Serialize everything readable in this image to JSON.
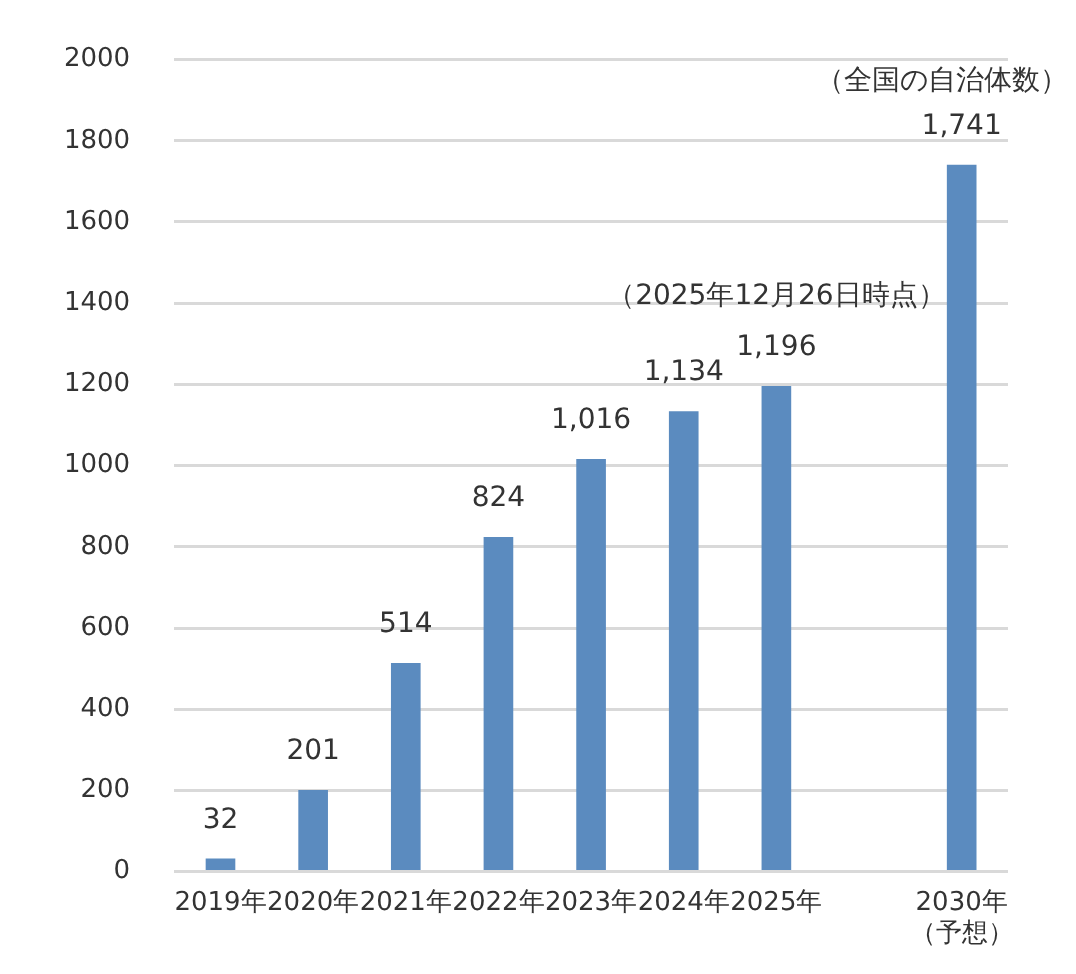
{
  "chart_data": {
    "type": "bar",
    "categories": [
      "2019年",
      "2020年",
      "2021年",
      "2022年",
      "2023年",
      "2024年",
      "2025年",
      null,
      "2030年（予想）"
    ],
    "values": [
      32,
      201,
      514,
      824,
      1016,
      1134,
      1196,
      null,
      1741
    ],
    "value_labels": [
      "32",
      "201",
      "514",
      "824",
      "1,016",
      "1,134",
      "1,196",
      null,
      "1,741"
    ],
    "color": "#5b8bbf",
    "ylim": [
      0,
      2000
    ],
    "yticks": [
      0,
      200,
      400,
      600,
      800,
      1000,
      1200,
      1400,
      1600,
      1800,
      2000
    ],
    "grid": "y",
    "annotations": [
      "（2025年12月26日時点）",
      "（全国の自治体数）"
    ]
  }
}
